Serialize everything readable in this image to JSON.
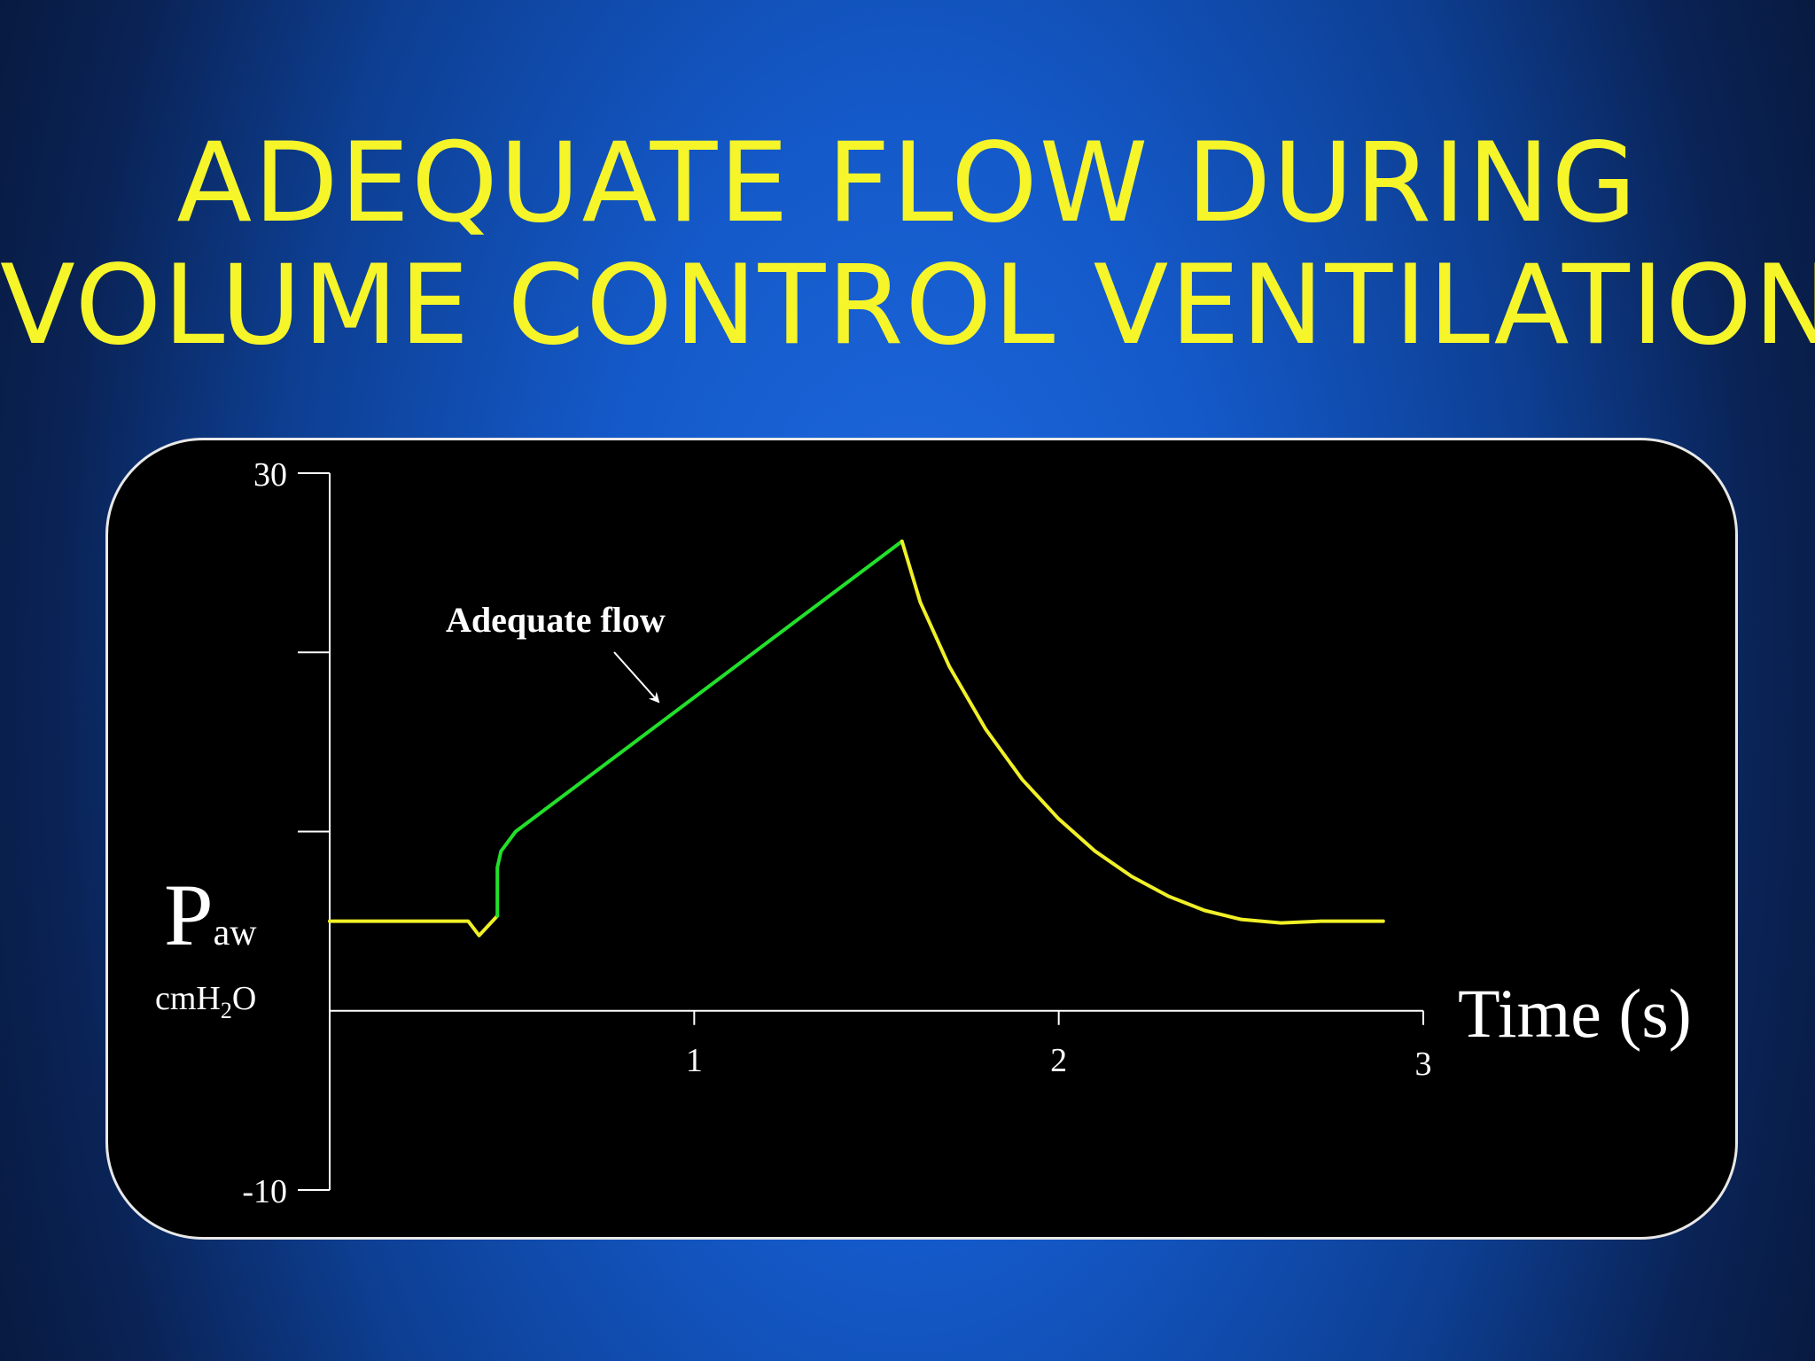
{
  "slide": {
    "title_line1": "ADEQUATE FLOW DURING",
    "title_line2": "VOLUME CONTROL VENTILATION"
  },
  "colors": {
    "title": "#f5f52a",
    "trace_yellow": "#f0f028",
    "trace_green": "#22e02a",
    "axis": "#ffffff",
    "panel": "#000000"
  },
  "chart_data": {
    "type": "line",
    "title": "ADEQUATE FLOW DURING VOLUME CONTROL VENTILATION",
    "ylabel": {
      "main": "P",
      "sub": "aw",
      "unit_prefix": "cmH",
      "unit_sub": "2",
      "unit_suffix": "O"
    },
    "xlabel": "Time (s)",
    "xlim": [
      0,
      3
    ],
    "ylim": [
      -10,
      30
    ],
    "x_ticks": [
      {
        "value": 1,
        "label": "1"
      },
      {
        "value": 2,
        "label": "2"
      },
      {
        "value": 3,
        "label": "3"
      }
    ],
    "y_ticks": [
      {
        "value": 30,
        "label": "30"
      },
      {
        "value": 20,
        "label": ""
      },
      {
        "value": 10,
        "label": ""
      },
      {
        "value": -10,
        "label": "-10"
      }
    ],
    "annotation": {
      "text": "Adequate flow",
      "target": {
        "x": 0.87,
        "y": 17
      }
    },
    "series": [
      {
        "segment": "baseline-and-trigger",
        "color": "yellow",
        "points": [
          [
            0,
            5
          ],
          [
            0.38,
            5
          ],
          [
            0.41,
            4.2
          ],
          [
            0.46,
            5.3
          ]
        ]
      },
      {
        "segment": "inspiration",
        "color": "green",
        "points": [
          [
            0.46,
            5.3
          ],
          [
            0.46,
            8
          ],
          [
            0.47,
            8.9
          ],
          [
            0.51,
            10
          ],
          [
            1.57,
            26.2
          ]
        ]
      },
      {
        "segment": "expiration",
        "color": "yellow",
        "points": [
          [
            1.57,
            26.2
          ],
          [
            1.62,
            22.8
          ],
          [
            1.7,
            19.2
          ],
          [
            1.8,
            15.7
          ],
          [
            1.9,
            12.9
          ],
          [
            2.0,
            10.7
          ],
          [
            2.1,
            8.9
          ],
          [
            2.2,
            7.5
          ],
          [
            2.3,
            6.4
          ],
          [
            2.4,
            5.6
          ],
          [
            2.5,
            5.1
          ],
          [
            2.61,
            4.9
          ],
          [
            2.72,
            5
          ],
          [
            2.89,
            5
          ]
        ]
      }
    ]
  }
}
